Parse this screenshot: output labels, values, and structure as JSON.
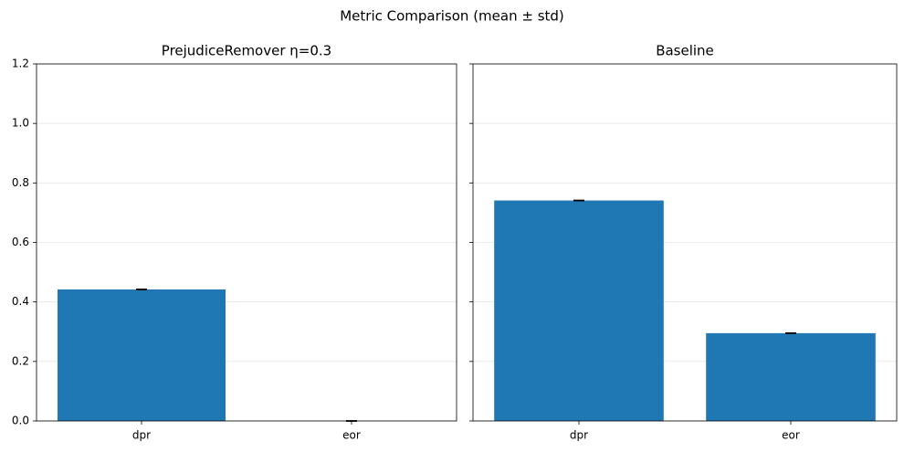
{
  "title": "Metric Comparison (mean ± std)",
  "chart_data": [
    {
      "type": "bar",
      "title": "PrejudiceRemover η=0.3",
      "categories": [
        "dpr",
        "eor"
      ],
      "values": [
        0.442,
        0.0
      ],
      "errors": [
        0.001,
        0.001
      ],
      "color": "#1f77b4",
      "ylim": [
        0,
        1.2
      ],
      "yticks": [
        {
          "value": 0,
          "label": "0.0"
        },
        0.2,
        0.4,
        0.6,
        0.8,
        {
          "value": 1,
          "label": "1.0"
        },
        1.2
      ],
      "grid": true
    },
    {
      "type": "bar",
      "title": "Baseline",
      "categories": [
        "dpr",
        "eor"
      ],
      "values": [
        0.741,
        0.295
      ],
      "errors": [
        0.001,
        0.001
      ],
      "color": "#1f77b4",
      "ylim": [
        0,
        1.2
      ],
      "yticks": [
        0,
        0.2,
        0.4,
        0.6,
        0.8,
        1,
        1.2
      ],
      "grid": true
    }
  ]
}
